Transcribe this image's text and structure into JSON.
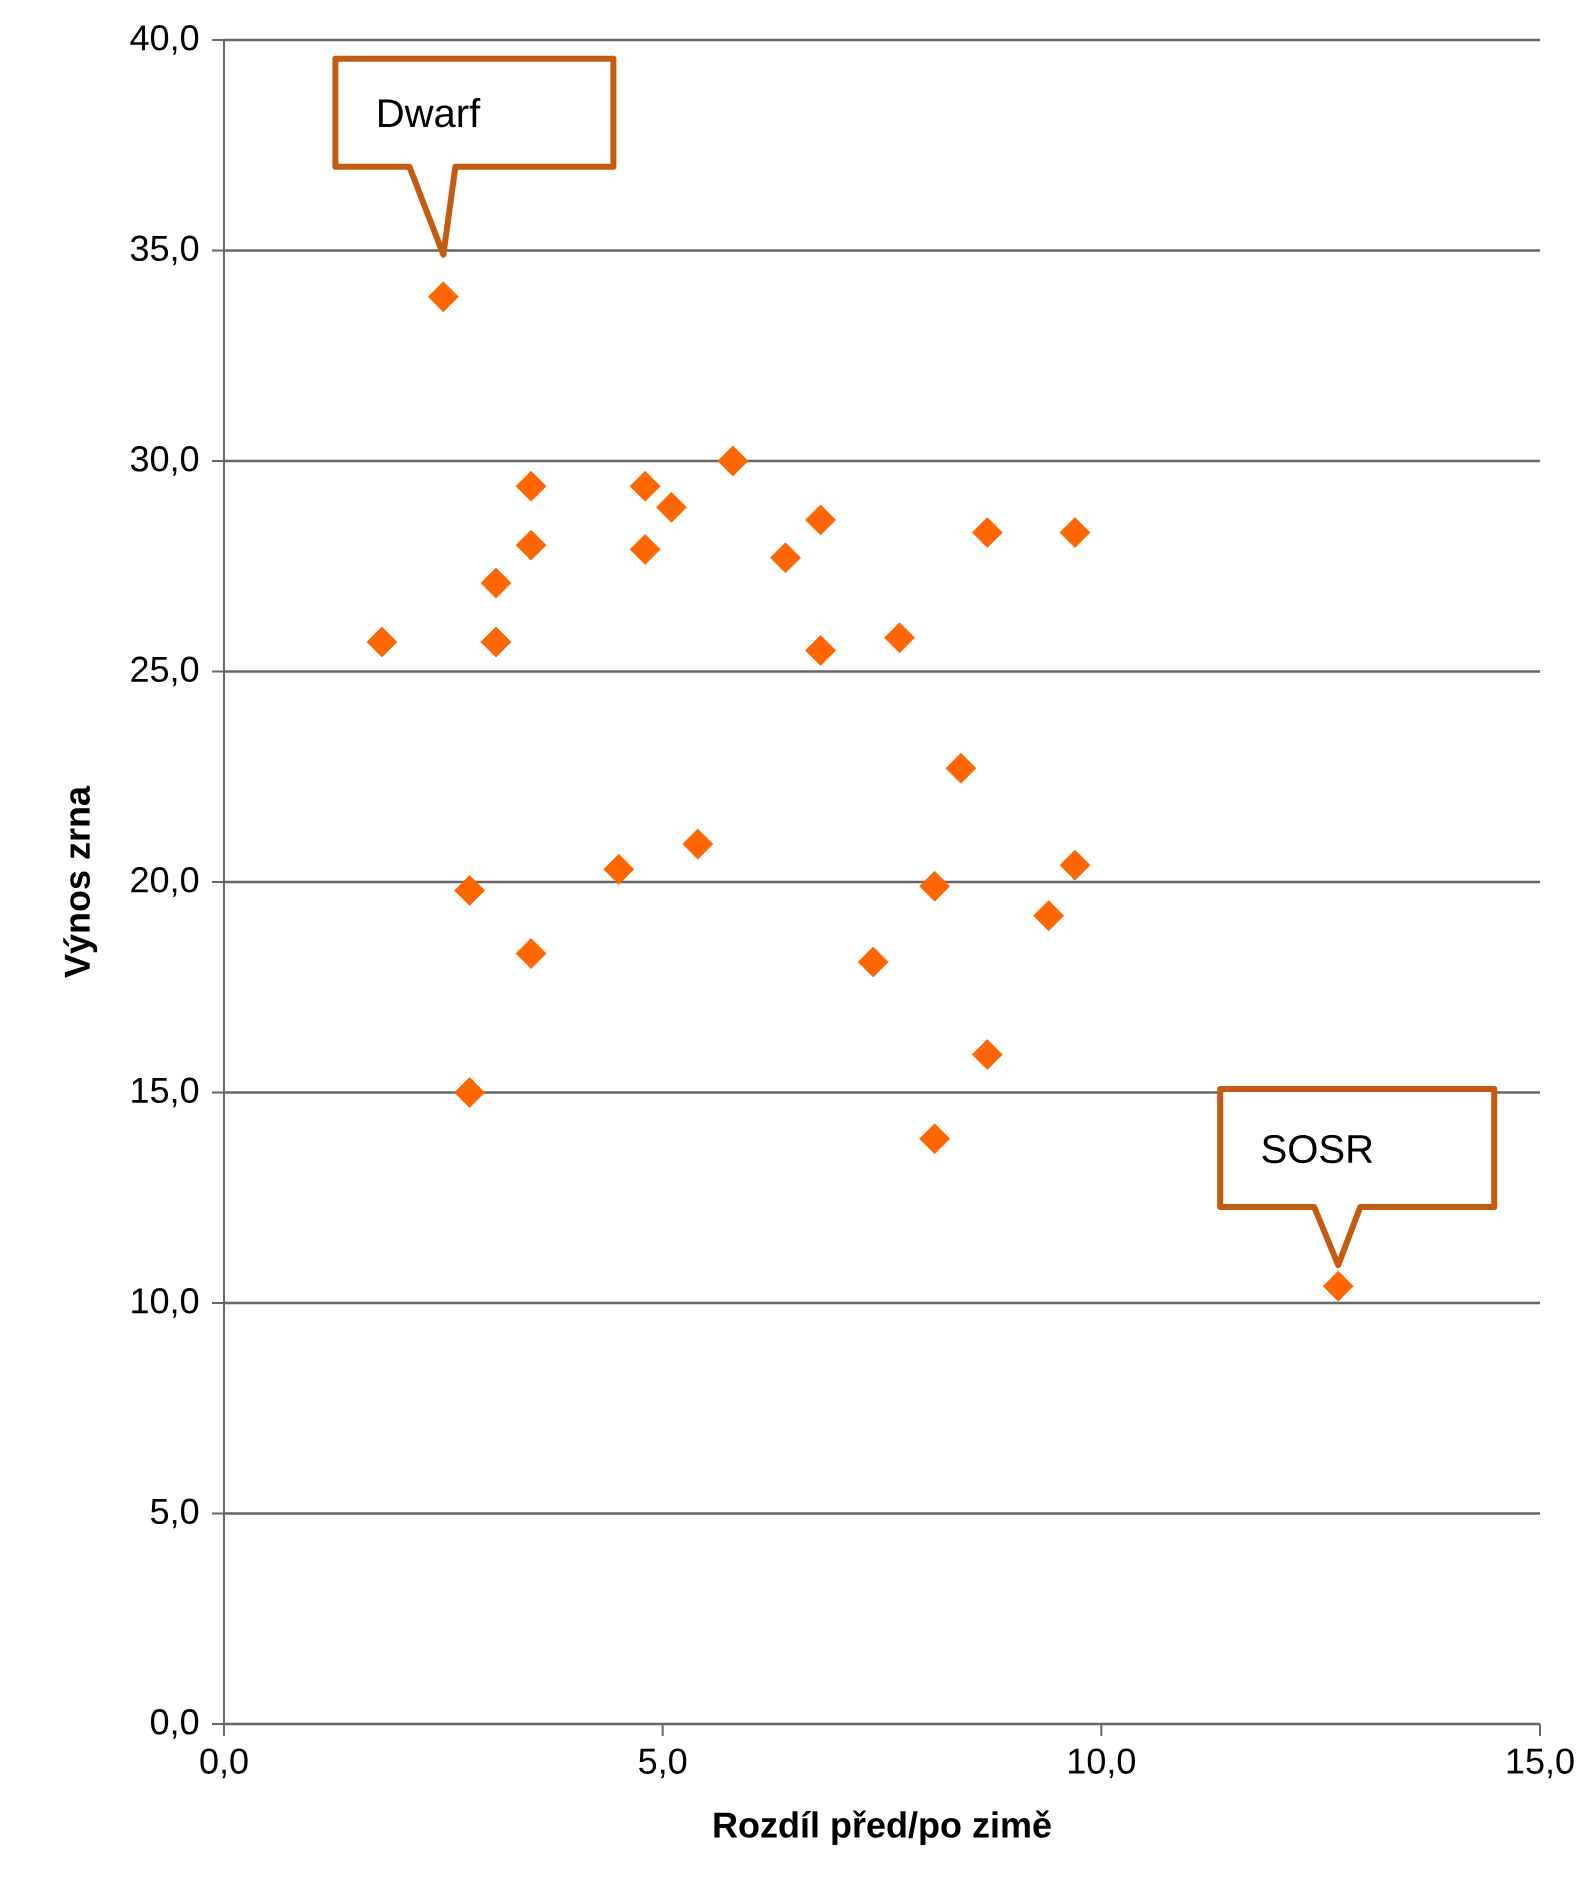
{
  "chart_data": {
    "type": "scatter",
    "xlabel": "Rozdíl před/po zimě",
    "ylabel": "Výnos zrna",
    "marker": "diamond",
    "grid": "y",
    "xlim": [
      0,
      15
    ],
    "ylim": [
      0,
      40
    ],
    "xticks": [
      {
        "value": 0,
        "label": "0,0"
      },
      {
        "value": 5,
        "label": "5,0"
      },
      {
        "value": 10,
        "label": "10,0"
      },
      {
        "value": 15,
        "label": "15,0"
      }
    ],
    "yticks": [
      {
        "value": 0,
        "label": "0,0"
      },
      {
        "value": 5,
        "label": "5,0"
      },
      {
        "value": 10,
        "label": "10,0"
      },
      {
        "value": 15,
        "label": "15,0"
      },
      {
        "value": 20,
        "label": "20,0"
      },
      {
        "value": 25,
        "label": "25,0"
      },
      {
        "value": 30,
        "label": "30,0"
      },
      {
        "value": 35,
        "label": "35,0"
      },
      {
        "value": 40,
        "label": "40,0"
      }
    ],
    "series": [
      {
        "color": "#ff6600",
        "x": [
          2.5,
          1.8,
          3.1,
          3.1,
          3.5,
          3.5,
          2.8,
          2.8,
          3.5,
          4.8,
          4.8,
          5.1,
          5.8,
          4.5,
          5.4,
          6.4,
          6.8,
          6.8,
          7.7,
          7.4,
          8.4,
          8.1,
          8.1,
          8.7,
          8.7,
          9.7,
          9.7,
          9.4,
          12.7
        ],
        "values": [
          33.9,
          25.7,
          27.1,
          25.7,
          28.0,
          29.4,
          19.8,
          15.0,
          18.3,
          29.4,
          27.9,
          28.9,
          30.0,
          20.3,
          20.9,
          27.7,
          28.6,
          25.5,
          25.8,
          18.1,
          22.7,
          19.9,
          13.9,
          15.9,
          28.3,
          28.3,
          20.4,
          19.2,
          10.4
        ]
      }
    ],
    "annotations": [
      "Dwarf",
      {
        "text": "SOSR",
        "x": 12.7,
        "y": 10.9
      }
    ]
  }
}
